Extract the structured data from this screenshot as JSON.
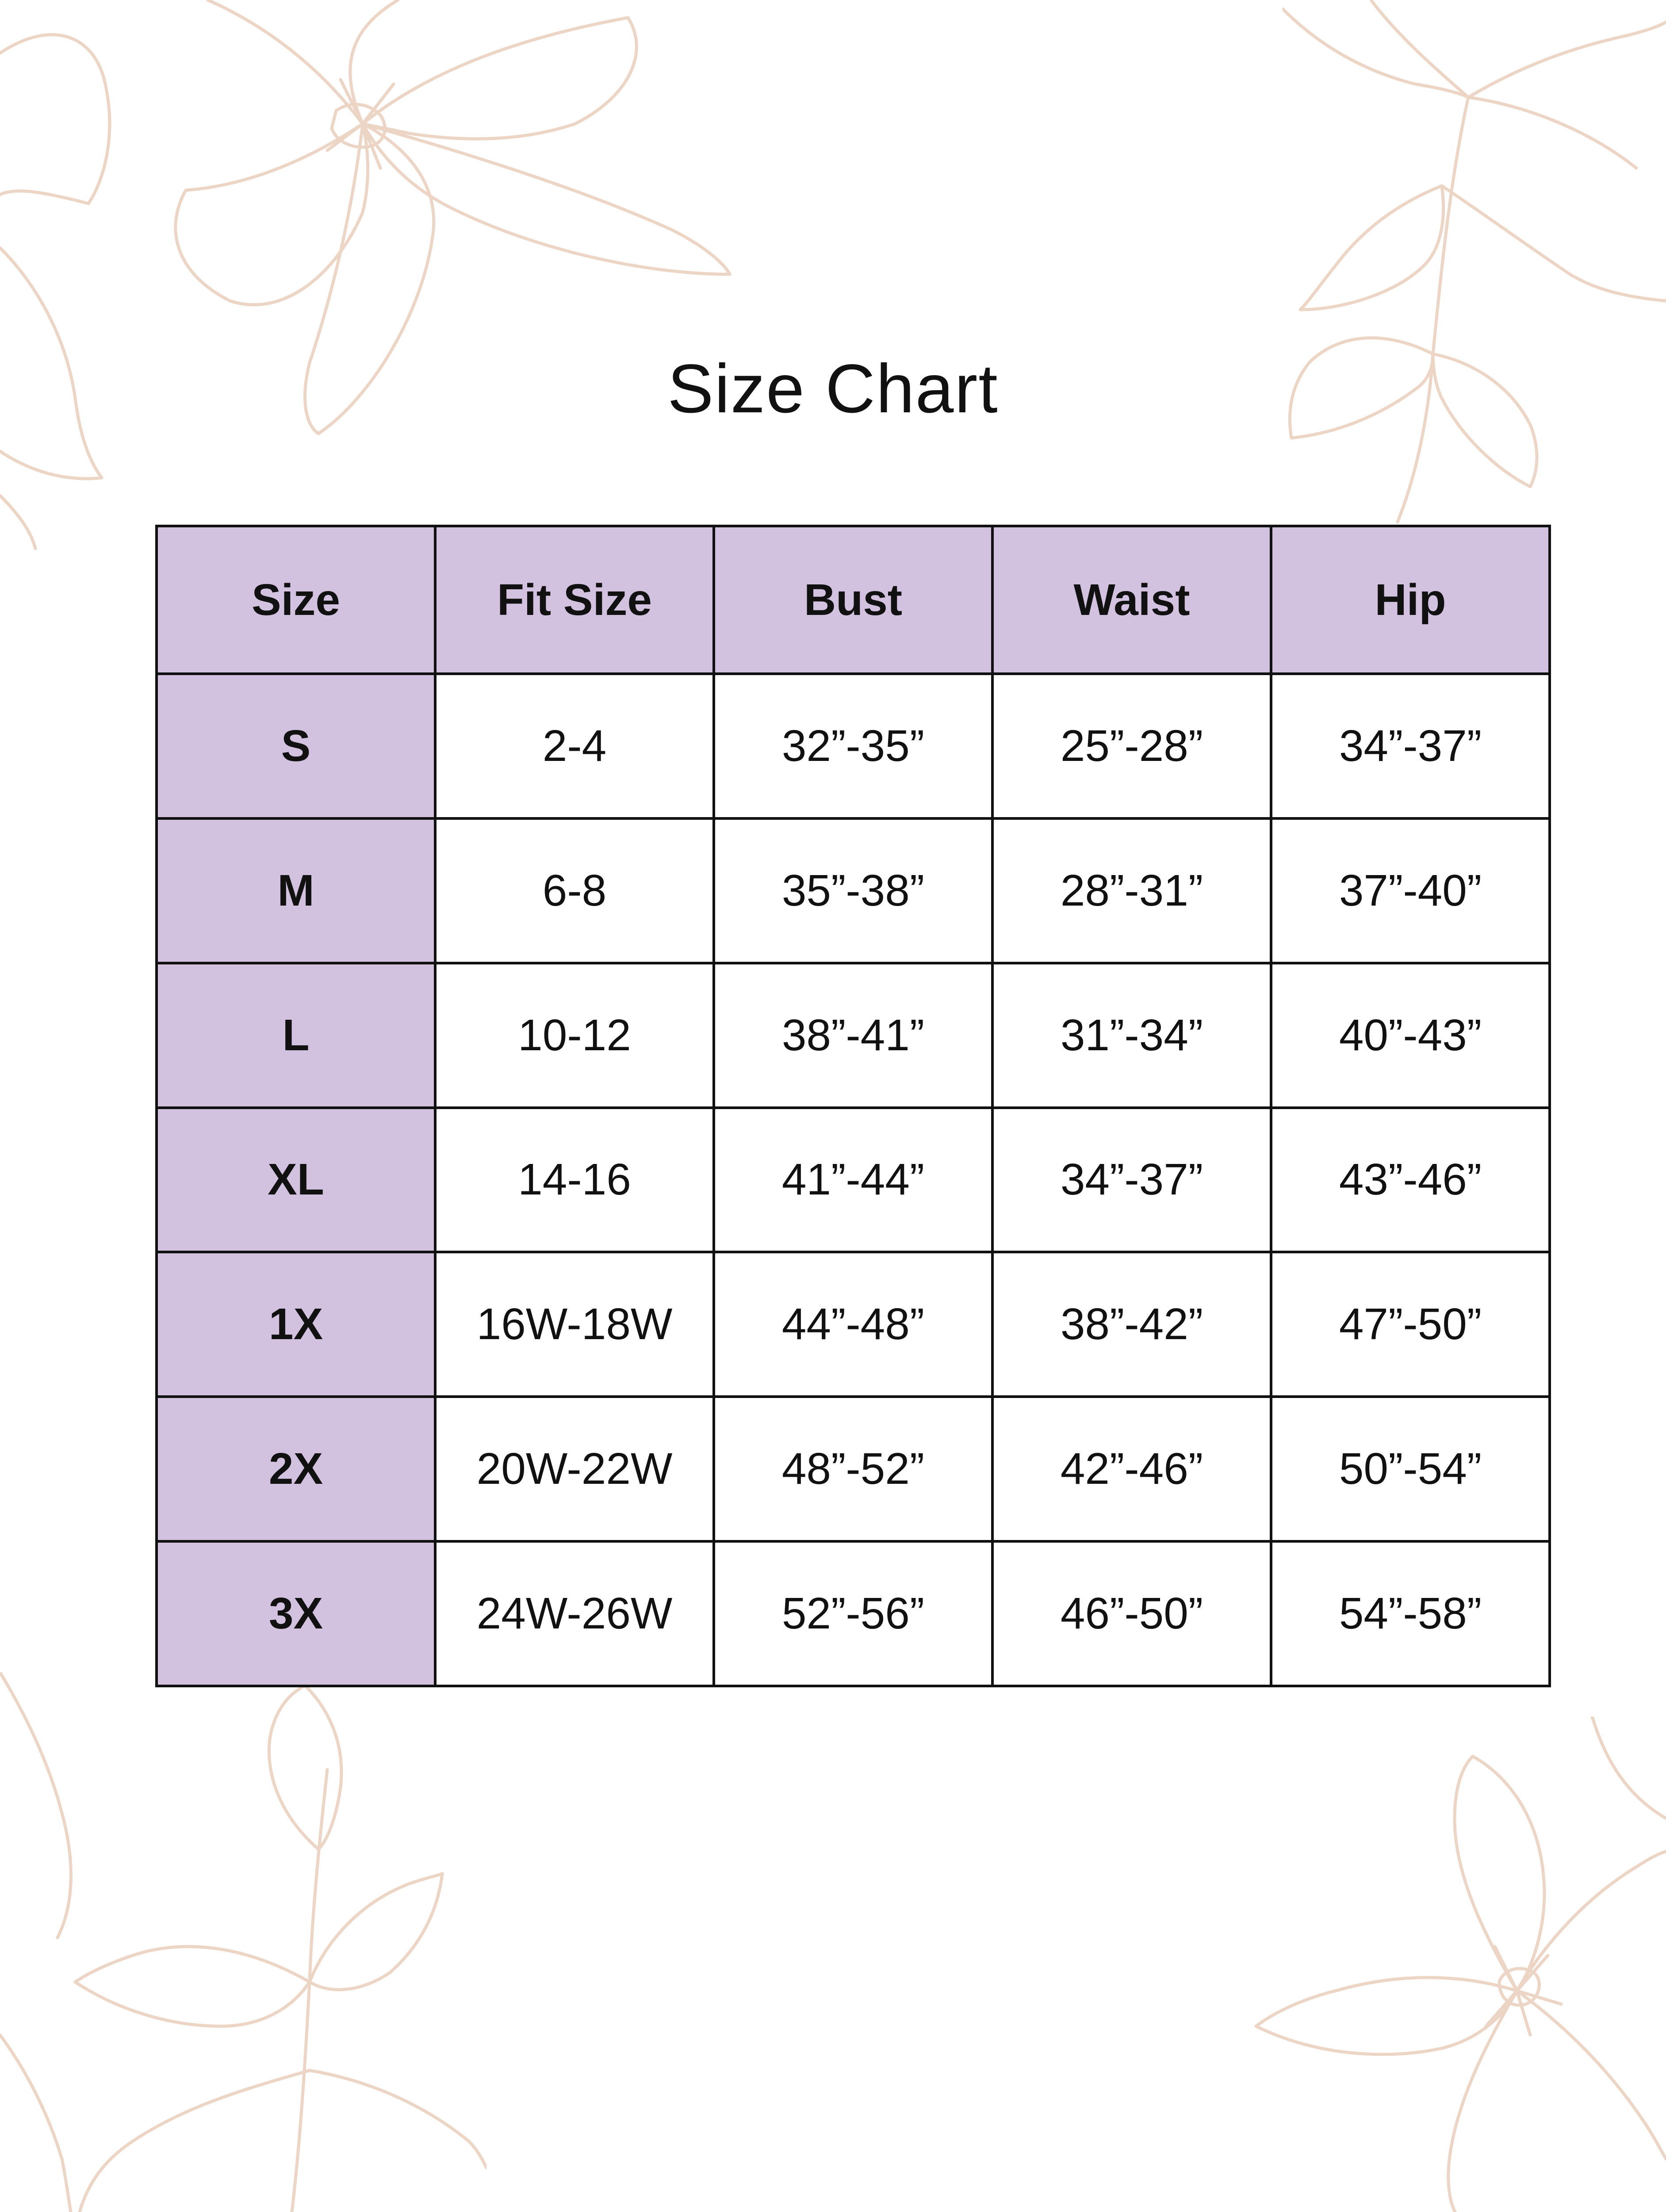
{
  "title": "Size Chart",
  "colors": {
    "header_bg": "#d3c1e0",
    "border": "#111111",
    "floral": "#ecd5c4"
  },
  "decorations": [
    "floral-corner-top-left",
    "floral-corner-top-right",
    "floral-corner-bottom-left",
    "floral-corner-bottom-right"
  ],
  "table": {
    "headers": [
      "Size",
      "Fit Size",
      "Bust",
      "Waist",
      "Hip"
    ],
    "rows": [
      [
        "S",
        "2-4",
        "32”-35”",
        "25”-28”",
        "34”-37”"
      ],
      [
        "M",
        "6-8",
        "35”-38”",
        "28”-31”",
        "37”-40”"
      ],
      [
        "L",
        "10-12",
        "38”-41”",
        "31”-34”",
        "40”-43”"
      ],
      [
        "XL",
        "14-16",
        "41”-44”",
        "34”-37”",
        "43”-46”"
      ],
      [
        "1X",
        "16W-18W",
        "44”-48”",
        "38”-42”",
        "47”-50”"
      ],
      [
        "2X",
        "20W-22W",
        "48”-52”",
        "42”-46”",
        "50”-54”"
      ],
      [
        "3X",
        "24W-26W",
        "52”-56”",
        "46”-50”",
        "54”-58”"
      ]
    ]
  }
}
